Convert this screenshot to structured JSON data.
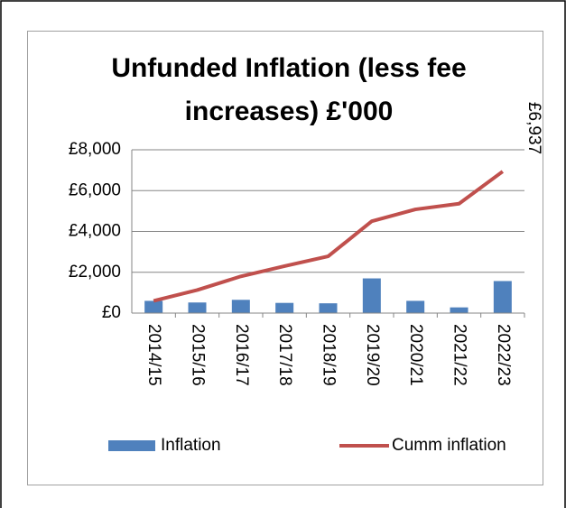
{
  "chart_data": {
    "type": "bar_line",
    "title": "Unfunded Inflation (less fee increases) £'000",
    "categories": [
      "2014/15",
      "2015/16",
      "2016/17",
      "2017/18",
      "2018/19",
      "2019/20",
      "2020/21",
      "2021/22",
      "2022/23"
    ],
    "series": [
      {
        "name": "Inflation",
        "type": "bar",
        "color": "#4f81bd",
        "values": [
          600,
          520,
          650,
          500,
          480,
          1700,
          600,
          280,
          1570
        ]
      },
      {
        "name": "Cumm inflation",
        "type": "line",
        "color": "#c0504d",
        "values": [
          600,
          1130,
          1800,
          2300,
          2780,
          4500,
          5080,
          5360,
          6937
        ],
        "value_labels": [
          null,
          null,
          null,
          null,
          null,
          null,
          null,
          null,
          "£6,937"
        ]
      }
    ],
    "ylim": [
      0,
      8000
    ],
    "yticks": [
      {
        "value": 0,
        "label": "£0"
      },
      {
        "value": 2000,
        "label": "£2,000"
      },
      {
        "value": 4000,
        "label": "£4,000"
      },
      {
        "value": 6000,
        "label": "£6,000"
      },
      {
        "value": 8000,
        "label": "£8,000"
      }
    ],
    "grid": true,
    "legend": "bottom"
  }
}
